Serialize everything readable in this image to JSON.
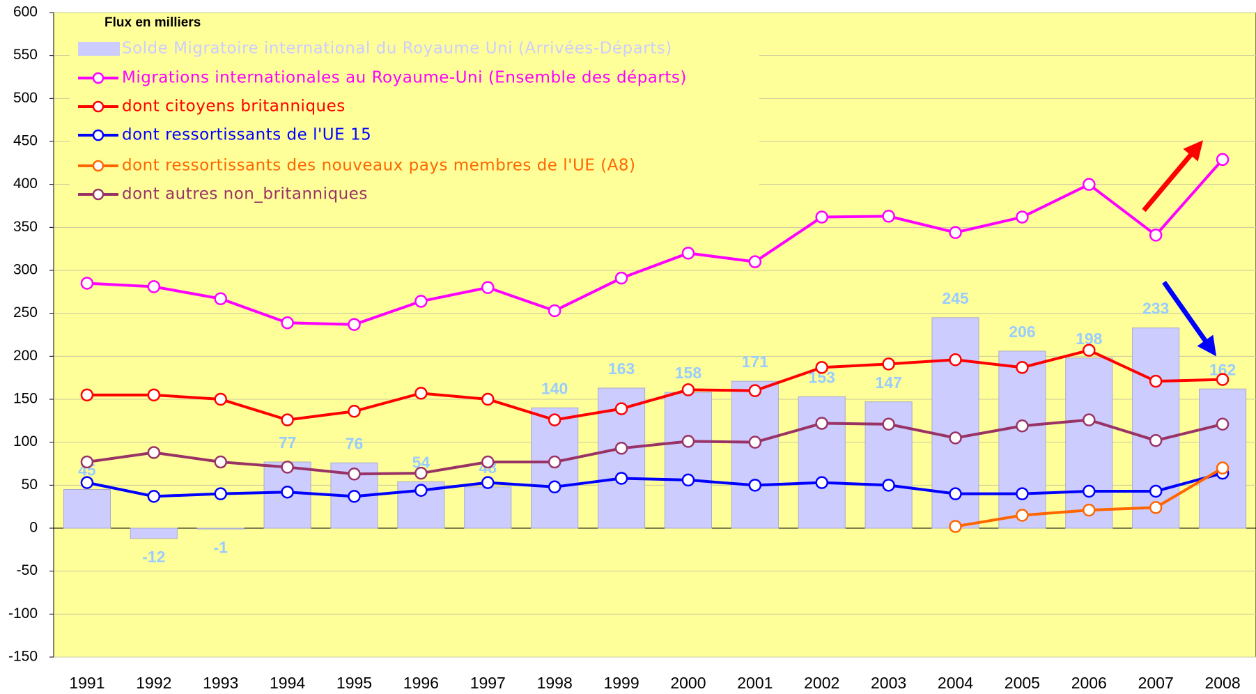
{
  "chart_data": {
    "type": "bar",
    "subtitle": "Flux en milliers",
    "categories": [
      "1991",
      "1992",
      "1993",
      "1994",
      "1995",
      "1996",
      "1997",
      "1998",
      "1999",
      "2000",
      "2001",
      "2002",
      "2003",
      "2004",
      "2005",
      "2006",
      "2007",
      "2008"
    ],
    "series": [
      {
        "name": "Solde Migratoire international du Royaume Uni (Arrivées-Départs)",
        "type": "bar",
        "color": "#ccccff",
        "label_color": "#99ccff",
        "values": [
          45,
          -12,
          -1,
          77,
          76,
          54,
          48,
          140,
          163,
          158,
          171,
          153,
          147,
          245,
          206,
          198,
          233,
          162
        ]
      },
      {
        "name": "Migrations internationales au Royaume-Uni (Ensemble des départs)",
        "type": "line",
        "color": "#ff00ff",
        "values": [
          285,
          281,
          267,
          239,
          237,
          264,
          280,
          253,
          291,
          320,
          310,
          362,
          363,
          344,
          362,
          400,
          341,
          429
        ]
      },
      {
        "name": "dont citoyens britanniques",
        "type": "line",
        "color": "#ff0000",
        "values": [
          155,
          155,
          150,
          126,
          136,
          157,
          150,
          126,
          139,
          161,
          160,
          187,
          191,
          196,
          187,
          207,
          171,
          173
        ]
      },
      {
        "name": "dont ressortissants de l'UE 15",
        "type": "line",
        "color": "#0000ff",
        "values": [
          53,
          37,
          40,
          42,
          37,
          44,
          53,
          48,
          58,
          56,
          50,
          53,
          50,
          40,
          40,
          43,
          43,
          64
        ]
      },
      {
        "name": "dont ressortissants des nouveaux pays membres de l'UE (A8)",
        "type": "line",
        "color": "#ff6600",
        "values": [
          null,
          null,
          null,
          null,
          null,
          null,
          null,
          null,
          null,
          null,
          null,
          null,
          null,
          2,
          15,
          21,
          24,
          70
        ]
      },
      {
        "name": "dont autres non_britanniques",
        "type": "line",
        "color": "#993366",
        "values": [
          77,
          88,
          77,
          71,
          63,
          64,
          77,
          77,
          93,
          101,
          100,
          122,
          121,
          105,
          119,
          126,
          102,
          121
        ]
      }
    ],
    "ylim": [
      -150,
      600
    ],
    "yticks": [
      -150,
      -100,
      -50,
      0,
      50,
      100,
      150,
      200,
      250,
      300,
      350,
      400,
      450,
      500,
      550,
      600
    ],
    "grid": true,
    "legend": "top-left"
  }
}
